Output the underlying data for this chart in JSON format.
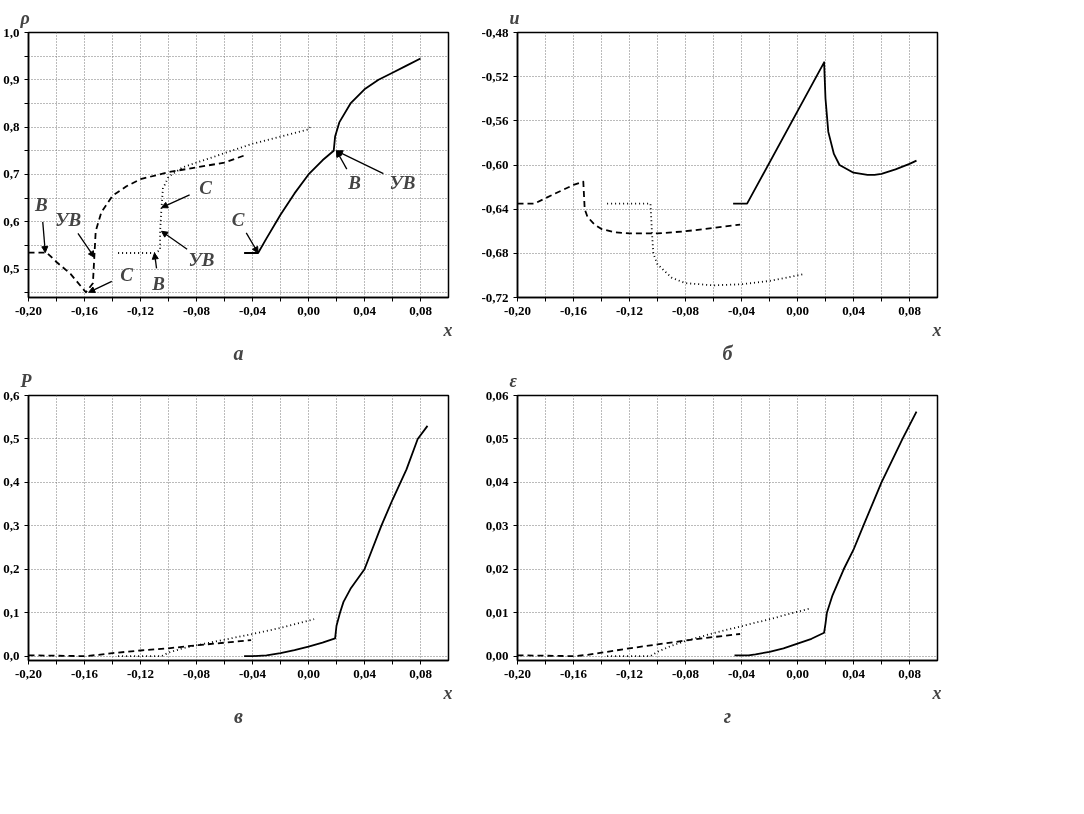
{
  "chart_data": [
    {
      "type": "line",
      "title": "а",
      "xlabel": "x",
      "ylabel": "ρ",
      "grid": true,
      "xlim": [
        -0.2,
        0.1
      ],
      "ylim": [
        0.44,
        1.0
      ],
      "xticks": [
        {
          "value": -0.2,
          "label": "-0,20"
        },
        {
          "value": -0.18,
          "label": null
        },
        {
          "value": -0.16,
          "label": "-0,16"
        },
        {
          "value": -0.14,
          "label": null
        },
        {
          "value": -0.12,
          "label": "-0,12"
        },
        {
          "value": -0.1,
          "label": null
        },
        {
          "value": -0.08,
          "label": "-0,08"
        },
        {
          "value": -0.06,
          "label": null
        },
        {
          "value": -0.04,
          "label": "-0,04"
        },
        {
          "value": -0.02,
          "label": null
        },
        {
          "value": 0.0,
          "label": "0,00"
        },
        {
          "value": 0.02,
          "label": null
        },
        {
          "value": 0.04,
          "label": "0,04"
        },
        {
          "value": 0.06,
          "label": null
        },
        {
          "value": 0.08,
          "label": "0,08"
        }
      ],
      "yticks": [
        {
          "value": 0.45,
          "label": null
        },
        {
          "value": 0.5,
          "label": "0,5"
        },
        {
          "value": 0.55,
          "label": null
        },
        {
          "value": 0.6,
          "label": "0,6"
        },
        {
          "value": 0.65,
          "label": null
        },
        {
          "value": 0.7,
          "label": "0,7"
        },
        {
          "value": 0.75,
          "label": null
        },
        {
          "value": 0.8,
          "label": "0,8"
        },
        {
          "value": 0.85,
          "label": null
        },
        {
          "value": 0.9,
          "label": "0,9"
        },
        {
          "value": 0.95,
          "label": null
        },
        {
          "value": 1.0,
          "label": "1,0"
        }
      ],
      "series": [
        {
          "color": "#000000",
          "line_style": "solid",
          "x": [
            -0.046,
            -0.036,
            -0.03,
            -0.02,
            -0.01,
            0.0,
            0.01,
            0.018,
            0.019,
            0.022,
            0.03,
            0.04,
            0.05,
            0.06,
            0.07,
            0.08
          ],
          "values": [
            0.534,
            0.534,
            0.565,
            0.615,
            0.66,
            0.7,
            0.73,
            0.75,
            0.78,
            0.81,
            0.85,
            0.88,
            0.9,
            0.915,
            0.93,
            0.945
          ]
        },
        {
          "color": "#000000",
          "line_style": "dashed",
          "x": [
            -0.2,
            -0.187,
            -0.18,
            -0.17,
            -0.159,
            -0.154,
            -0.153,
            -0.152,
            -0.148,
            -0.14,
            -0.13,
            -0.12,
            -0.1,
            -0.08,
            -0.06,
            -0.046
          ],
          "values": [
            0.535,
            0.535,
            0.515,
            0.49,
            0.451,
            0.47,
            0.525,
            0.58,
            0.62,
            0.655,
            0.675,
            0.69,
            0.705,
            0.715,
            0.725,
            0.74
          ]
        },
        {
          "color": "#000000",
          "line_style": "dotted",
          "x": [
            -0.136,
            -0.11,
            -0.106,
            -0.106,
            -0.105,
            -0.104,
            -0.1,
            -0.09,
            -0.08,
            -0.06,
            -0.04,
            -0.02,
            0.0,
            0.001
          ],
          "values": [
            0.534,
            0.534,
            0.54,
            0.58,
            0.63,
            0.67,
            0.695,
            0.715,
            0.725,
            0.745,
            0.765,
            0.78,
            0.795,
            0.8
          ]
        }
      ],
      "annotations": [
        {
          "text": "В",
          "x": -0.188,
          "y": 0.535
        },
        {
          "text": "УВ",
          "x": -0.153,
          "y": 0.525
        },
        {
          "text": "С",
          "x": -0.157,
          "y": 0.451
        },
        {
          "text": "В",
          "x": -0.11,
          "y": 0.534
        },
        {
          "text": "С",
          "x": -0.105,
          "y": 0.63
        },
        {
          "text": "УВ",
          "x": -0.105,
          "y": 0.58
        },
        {
          "text": "С",
          "x": -0.036,
          "y": 0.534
        },
        {
          "text": "В",
          "x": 0.02,
          "y": 0.75
        },
        {
          "text": "УВ",
          "x": 0.02,
          "y": 0.75
        }
      ]
    },
    {
      "type": "line",
      "title": "б",
      "xlabel": "x",
      "ylabel": "u",
      "grid": true,
      "xlim": [
        -0.2,
        0.1
      ],
      "ylim": [
        -0.72,
        -0.48
      ],
      "xticks": [
        {
          "value": -0.2,
          "label": "-0,20"
        },
        {
          "value": -0.18,
          "label": null
        },
        {
          "value": -0.16,
          "label": "-0,16"
        },
        {
          "value": -0.14,
          "label": null
        },
        {
          "value": -0.12,
          "label": "-0,12"
        },
        {
          "value": -0.1,
          "label": null
        },
        {
          "value": -0.08,
          "label": "-0,08"
        },
        {
          "value": -0.06,
          "label": null
        },
        {
          "value": -0.04,
          "label": "-0,04"
        },
        {
          "value": -0.02,
          "label": null
        },
        {
          "value": 0.0,
          "label": "0,00"
        },
        {
          "value": 0.02,
          "label": null
        },
        {
          "value": 0.04,
          "label": "0,04"
        },
        {
          "value": 0.06,
          "label": null
        },
        {
          "value": 0.08,
          "label": "0,08"
        }
      ],
      "yticks": [
        {
          "value": -0.72,
          "label": "-0,72"
        },
        {
          "value": -0.68,
          "label": "-0,68"
        },
        {
          "value": -0.64,
          "label": "-0,64"
        },
        {
          "value": -0.6,
          "label": "-0,60"
        },
        {
          "value": -0.56,
          "label": "-0,56"
        },
        {
          "value": -0.52,
          "label": "-0,52"
        },
        {
          "value": -0.48,
          "label": "-0,48"
        }
      ],
      "series": [
        {
          "color": "#000000",
          "line_style": "solid",
          "x": [
            -0.046,
            -0.036,
            0.019,
            0.02,
            0.022,
            0.026,
            0.03,
            0.04,
            0.05,
            0.055,
            0.06,
            0.07,
            0.08,
            0.085
          ],
          "values": [
            -0.635,
            -0.635,
            -0.507,
            -0.54,
            -0.57,
            -0.59,
            -0.6,
            -0.607,
            -0.609,
            -0.609,
            -0.608,
            -0.604,
            -0.599,
            -0.596
          ]
        },
        {
          "color": "#000000",
          "line_style": "dashed",
          "x": [
            -0.2,
            -0.188,
            -0.18,
            -0.17,
            -0.16,
            -0.153,
            -0.152,
            -0.15,
            -0.145,
            -0.14,
            -0.13,
            -0.12,
            -0.1,
            -0.08,
            -0.06,
            -0.041
          ],
          "values": [
            -0.635,
            -0.635,
            -0.63,
            -0.624,
            -0.618,
            -0.615,
            -0.64,
            -0.647,
            -0.654,
            -0.658,
            -0.661,
            -0.662,
            -0.662,
            -0.66,
            -0.657,
            -0.654
          ]
        },
        {
          "color": "#000000",
          "line_style": "dotted",
          "x": [
            -0.136,
            -0.105,
            -0.104,
            -0.103,
            -0.1,
            -0.09,
            -0.08,
            -0.06,
            -0.04,
            -0.02,
            0.004
          ],
          "values": [
            -0.635,
            -0.635,
            -0.66,
            -0.68,
            -0.69,
            -0.702,
            -0.707,
            -0.709,
            -0.708,
            -0.705,
            -0.699
          ]
        }
      ]
    },
    {
      "type": "line",
      "title": "в",
      "xlabel": "x",
      "ylabel": "P",
      "grid": true,
      "xlim": [
        -0.2,
        0.1
      ],
      "ylim": [
        -0.01,
        0.6
      ],
      "xticks": [
        {
          "value": -0.2,
          "label": "-0,20"
        },
        {
          "value": -0.18,
          "label": null
        },
        {
          "value": -0.16,
          "label": "-0,16"
        },
        {
          "value": -0.14,
          "label": null
        },
        {
          "value": -0.12,
          "label": "-0,12"
        },
        {
          "value": -0.1,
          "label": null
        },
        {
          "value": -0.08,
          "label": "-0,08"
        },
        {
          "value": -0.06,
          "label": null
        },
        {
          "value": -0.04,
          "label": "-0,04"
        },
        {
          "value": -0.02,
          "label": null
        },
        {
          "value": 0.0,
          "label": "0,00"
        },
        {
          "value": 0.02,
          "label": null
        },
        {
          "value": 0.04,
          "label": "0,04"
        },
        {
          "value": 0.06,
          "label": null
        },
        {
          "value": 0.08,
          "label": "0,08"
        }
      ],
      "yticks": [
        {
          "value": 0.0,
          "label": "0,0"
        },
        {
          "value": 0.1,
          "label": "0,1"
        },
        {
          "value": 0.2,
          "label": "0,2"
        },
        {
          "value": 0.3,
          "label": "0,3"
        },
        {
          "value": 0.4,
          "label": "0,4"
        },
        {
          "value": 0.5,
          "label": "0,5"
        },
        {
          "value": 0.6,
          "label": "0,6"
        }
      ],
      "series": [
        {
          "color": "#000000",
          "line_style": "solid",
          "x": [
            -0.046,
            -0.04,
            -0.03,
            -0.02,
            -0.01,
            0.0,
            0.01,
            0.019,
            0.02,
            0.0225,
            0.025,
            0.03,
            0.04,
            0.052,
            0.06,
            0.07,
            0.078,
            0.085
          ],
          "values": [
            0.0,
            0.0,
            0.002,
            0.007,
            0.014,
            0.022,
            0.031,
            0.041,
            0.07,
            0.1,
            0.125,
            0.155,
            0.2,
            0.3,
            0.36,
            0.43,
            0.5,
            0.53
          ]
        },
        {
          "color": "#000000",
          "line_style": "dashed",
          "x": [
            -0.2,
            -0.16,
            -0.15,
            -0.14,
            -0.12,
            -0.1,
            -0.08,
            -0.06,
            -0.041
          ],
          "values": [
            0.002,
            0.0,
            0.003,
            0.007,
            0.013,
            0.018,
            0.025,
            0.031,
            0.037
          ]
        },
        {
          "color": "#000000",
          "line_style": "dotted",
          "x": [
            -0.136,
            -0.105,
            -0.1,
            -0.09,
            -0.08,
            -0.06,
            -0.04,
            -0.02,
            0.004
          ],
          "values": [
            0.0,
            0.0,
            0.008,
            0.018,
            0.025,
            0.038,
            0.051,
            0.065,
            0.085
          ]
        }
      ]
    },
    {
      "type": "line",
      "title": "г",
      "xlabel": "x",
      "ylabel": "ε",
      "grid": true,
      "xlim": [
        -0.2,
        0.1
      ],
      "ylim": [
        -0.001,
        0.06
      ],
      "xticks": [
        {
          "value": -0.2,
          "label": "-0,20"
        },
        {
          "value": -0.18,
          "label": null
        },
        {
          "value": -0.16,
          "label": "-0,16"
        },
        {
          "value": -0.14,
          "label": null
        },
        {
          "value": -0.12,
          "label": "-0,12"
        },
        {
          "value": -0.1,
          "label": null
        },
        {
          "value": -0.08,
          "label": "-0,08"
        },
        {
          "value": -0.06,
          "label": null
        },
        {
          "value": -0.04,
          "label": "-0,04"
        },
        {
          "value": -0.02,
          "label": null
        },
        {
          "value": 0.0,
          "label": "0,00"
        },
        {
          "value": 0.02,
          "label": null
        },
        {
          "value": 0.04,
          "label": "0,04"
        },
        {
          "value": 0.06,
          "label": null
        },
        {
          "value": 0.08,
          "label": "0,08"
        }
      ],
      "yticks": [
        {
          "value": 0.0,
          "label": "0,00"
        },
        {
          "value": 0.01,
          "label": "0,01"
        },
        {
          "value": 0.02,
          "label": "0,02"
        },
        {
          "value": 0.03,
          "label": "0,03"
        },
        {
          "value": 0.04,
          "label": "0,04"
        },
        {
          "value": 0.05,
          "label": "0,05"
        },
        {
          "value": 0.06,
          "label": "0,06"
        }
      ],
      "series": [
        {
          "color": "#000000",
          "line_style": "solid",
          "x": [
            -0.045,
            -0.035,
            -0.03,
            -0.02,
            -0.01,
            0.0,
            0.01,
            0.019,
            0.02,
            0.021,
            0.025,
            0.033,
            0.04,
            0.047,
            0.06,
            0.07,
            0.075,
            0.085
          ],
          "values": [
            0.0002,
            0.0002,
            0.0004,
            0.001,
            0.0018,
            0.0029,
            0.004,
            0.0054,
            0.0075,
            0.01,
            0.014,
            0.02,
            0.0245,
            0.03,
            0.04,
            0.0467,
            0.05,
            0.0563
          ]
        },
        {
          "color": "#000000",
          "line_style": "dashed",
          "x": [
            -0.2,
            -0.16,
            -0.15,
            -0.14,
            -0.12,
            -0.1,
            -0.08,
            -0.06,
            -0.041
          ],
          "values": [
            0.0002,
            0.0,
            0.0003,
            0.0008,
            0.0018,
            0.0027,
            0.0036,
            0.0044,
            0.0051
          ]
        },
        {
          "color": "#000000",
          "line_style": "dotted",
          "x": [
            -0.136,
            -0.105,
            -0.1,
            -0.09,
            -0.08,
            -0.06,
            -0.04,
            -0.02,
            0.009
          ],
          "values": [
            0.0,
            0.0,
            0.001,
            0.0024,
            0.0035,
            0.0053,
            0.0069,
            0.0085,
            0.011
          ]
        }
      ]
    }
  ]
}
